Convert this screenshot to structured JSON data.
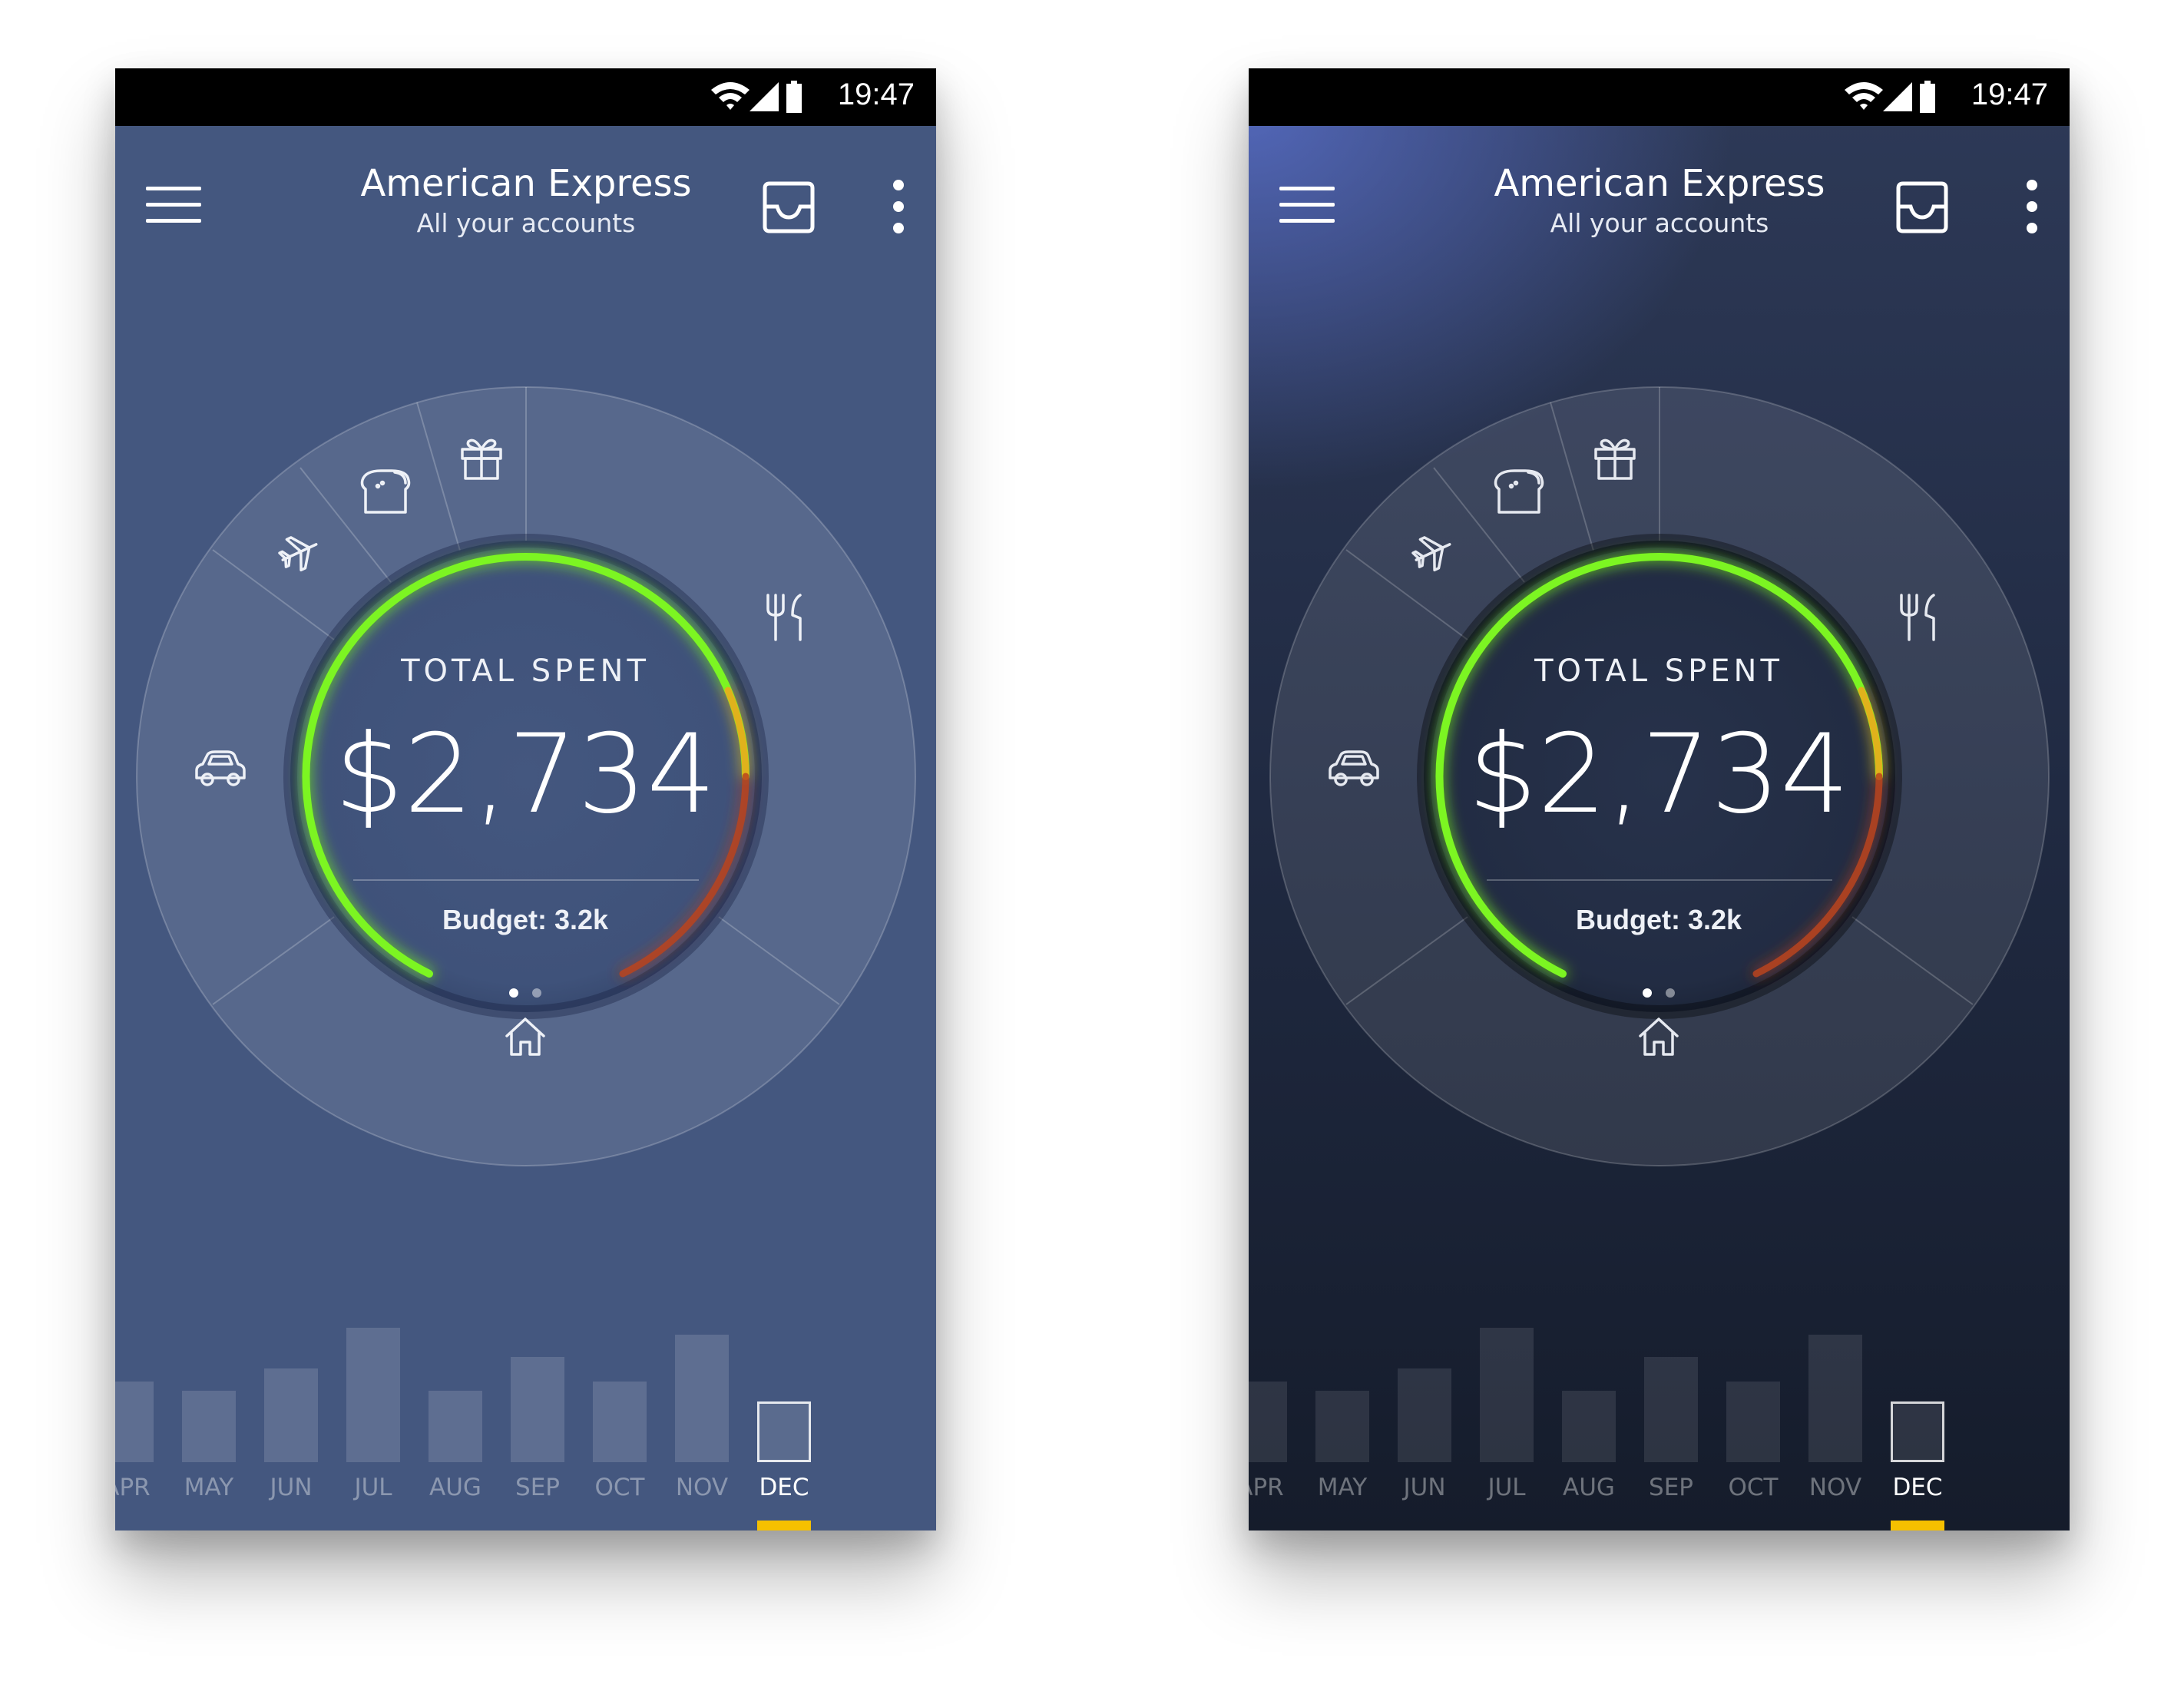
{
  "status": {
    "time": "19:47"
  },
  "header": {
    "title": "American Express",
    "subtitle": "All your accounts"
  },
  "summary": {
    "total_label": "TOTAL SPENT",
    "total_value": "$2,734",
    "budget_label": "Budget: 3.2k",
    "page_count": 2,
    "active_page": 0
  },
  "categories": [
    {
      "icon": "car-icon"
    },
    {
      "icon": "airplane-icon"
    },
    {
      "icon": "bread-icon"
    },
    {
      "icon": "gift-icon"
    },
    {
      "icon": "restaurant-icon"
    },
    {
      "icon": "home-icon"
    }
  ],
  "months": [
    {
      "label": "APR",
      "level": 0.6
    },
    {
      "label": "MAY",
      "level": 0.53
    },
    {
      "label": "JUN",
      "level": 0.7
    },
    {
      "label": "JUL",
      "level": 1.0
    },
    {
      "label": "AUG",
      "level": 0.53
    },
    {
      "label": "SEP",
      "level": 0.78
    },
    {
      "label": "OCT",
      "level": 0.6
    },
    {
      "label": "NOV",
      "level": 0.95
    },
    {
      "label": "DEC",
      "level": 0.45,
      "active": true
    }
  ],
  "colors": {
    "light_background": "#44577f",
    "dark_background": "#1b2334",
    "arc_green": "#7cf521",
    "arc_yellow": "#e0b21a",
    "arc_red": "#b33a24",
    "active_month": "#f5c000"
  }
}
